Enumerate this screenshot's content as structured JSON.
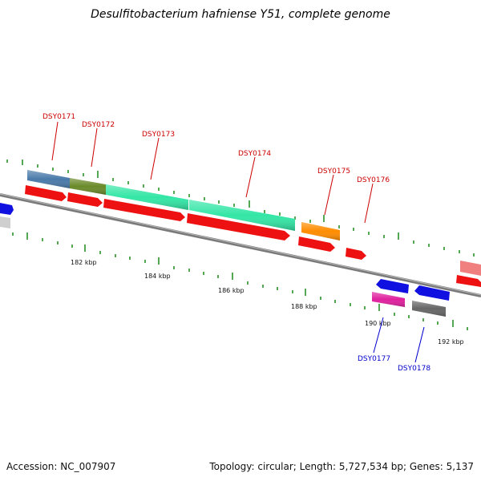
{
  "title": "Desulfitobacterium hafniense Y51, complete genome",
  "footer": {
    "accession_label": "Accession: NC_007907",
    "info": "Topology: circular; Length: 5,727,534 bp; Genes: 5,137"
  },
  "colors": {
    "background": "#ffffff",
    "backbone": "#8c8c8c",
    "tick_minor": "#1a8a1a",
    "forward_label": "#cc0000",
    "reverse_label": "#0000cc"
  },
  "scale": {
    "kbp_labels": [
      {
        "pos_kbp": 182,
        "text": "182 kbp"
      },
      {
        "pos_kbp": 184,
        "text": "184 kbp"
      },
      {
        "pos_kbp": 186,
        "text": "186 kbp"
      },
      {
        "pos_kbp": 188,
        "text": "188 kbp"
      },
      {
        "pos_kbp": 190,
        "text": "190 kbp"
      },
      {
        "pos_kbp": 192,
        "text": "192 kbp"
      }
    ]
  },
  "gene_labels": [
    {
      "text": "DSY0171",
      "strand": "forward"
    },
    {
      "text": "DSY0172",
      "strand": "forward"
    },
    {
      "text": "DSY0173",
      "strand": "forward"
    },
    {
      "text": "DSY0174",
      "strand": "forward"
    },
    {
      "text": "DSY0175",
      "strand": "forward"
    },
    {
      "text": "DSY0176",
      "strand": "forward"
    },
    {
      "text": "DSY0177",
      "strand": "reverse"
    },
    {
      "text": "DSY0178",
      "strand": "reverse"
    }
  ]
}
